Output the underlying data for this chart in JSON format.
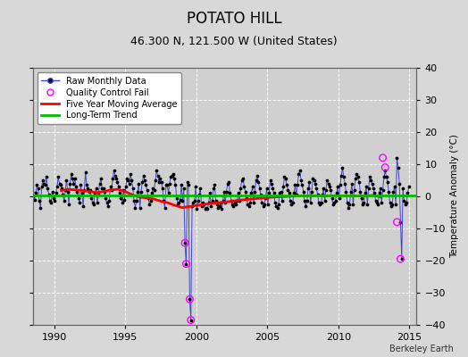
{
  "title": "POTATO HILL",
  "subtitle": "46.300 N, 121.500 W (United States)",
  "ylabel": "Temperature Anomaly (°C)",
  "xlim": [
    1988.5,
    2015.5
  ],
  "ylim": [
    -40,
    40
  ],
  "yticks": [
    -40,
    -30,
    -20,
    -10,
    0,
    10,
    20,
    30,
    40
  ],
  "xticks": [
    1990,
    1995,
    2000,
    2005,
    2010,
    2015
  ],
  "background_color": "#d8d8d8",
  "plot_bg_color": "#d0d0d0",
  "grid_color": "#ffffff",
  "title_fontsize": 12,
  "subtitle_fontsize": 9,
  "watermark": "Berkeley Earth",
  "raw_line_color": "#4444cc",
  "raw_marker_color": "#000000",
  "qc_fail_color": "#ff00ff",
  "moving_avg_color": "#ff0000",
  "trend_color": "#00bb00",
  "raw_monthly_x": [
    1988.042,
    1988.125,
    1988.208,
    1988.292,
    1988.375,
    1988.458,
    1988.542,
    1988.625,
    1988.708,
    1988.792,
    1988.875,
    1988.958,
    1989.042,
    1989.125,
    1989.208,
    1989.292,
    1989.375,
    1989.458,
    1989.542,
    1989.625,
    1989.708,
    1989.792,
    1989.875,
    1989.958,
    1990.042,
    1990.125,
    1990.208,
    1990.292,
    1990.375,
    1990.458,
    1990.542,
    1990.625,
    1990.708,
    1990.792,
    1990.875,
    1990.958,
    1991.042,
    1991.125,
    1991.208,
    1991.292,
    1991.375,
    1991.458,
    1991.542,
    1991.625,
    1991.708,
    1991.792,
    1991.875,
    1991.958,
    1992.042,
    1992.125,
    1992.208,
    1992.292,
    1992.375,
    1992.458,
    1992.542,
    1992.625,
    1992.708,
    1992.792,
    1992.875,
    1992.958,
    1993.042,
    1993.125,
    1993.208,
    1993.292,
    1993.375,
    1993.458,
    1993.542,
    1993.625,
    1993.708,
    1993.792,
    1993.875,
    1993.958,
    1994.042,
    1994.125,
    1994.208,
    1994.292,
    1994.375,
    1994.458,
    1994.542,
    1994.625,
    1994.708,
    1994.792,
    1994.875,
    1994.958,
    1995.042,
    1995.125,
    1995.208,
    1995.292,
    1995.375,
    1995.458,
    1995.542,
    1995.625,
    1995.708,
    1995.792,
    1995.875,
    1995.958,
    1996.042,
    1996.125,
    1996.208,
    1996.292,
    1996.375,
    1996.458,
    1996.542,
    1996.625,
    1996.708,
    1996.792,
    1996.875,
    1996.958,
    1997.042,
    1997.125,
    1997.208,
    1997.292,
    1997.375,
    1997.458,
    1997.542,
    1997.625,
    1997.708,
    1997.792,
    1997.875,
    1997.958,
    1998.042,
    1998.125,
    1998.208,
    1998.292,
    1998.375,
    1998.458,
    1998.542,
    1998.625,
    1998.708,
    1998.792,
    1998.875,
    1998.958,
    1999.042,
    1999.125,
    1999.208,
    1999.292,
    1999.375,
    1999.458,
    1999.542,
    1999.625,
    1999.708,
    1999.792,
    1999.875,
    1999.958,
    2000.042,
    2000.125,
    2000.208,
    2000.292,
    2000.375,
    2000.458,
    2000.542,
    2000.625,
    2000.708,
    2000.792,
    2000.875,
    2000.958,
    2001.042,
    2001.125,
    2001.208,
    2001.292,
    2001.375,
    2001.458,
    2001.542,
    2001.625,
    2001.708,
    2001.792,
    2001.875,
    2001.958,
    2002.042,
    2002.125,
    2002.208,
    2002.292,
    2002.375,
    2002.458,
    2002.542,
    2002.625,
    2002.708,
    2002.792,
    2002.875,
    2002.958,
    2003.042,
    2003.125,
    2003.208,
    2003.292,
    2003.375,
    2003.458,
    2003.542,
    2003.625,
    2003.708,
    2003.792,
    2003.875,
    2003.958,
    2004.042,
    2004.125,
    2004.208,
    2004.292,
    2004.375,
    2004.458,
    2004.542,
    2004.625,
    2004.708,
    2004.792,
    2004.875,
    2004.958,
    2005.042,
    2005.125,
    2005.208,
    2005.292,
    2005.375,
    2005.458,
    2005.542,
    2005.625,
    2005.708,
    2005.792,
    2005.875,
    2005.958,
    2006.042,
    2006.125,
    2006.208,
    2006.292,
    2006.375,
    2006.458,
    2006.542,
    2006.625,
    2006.708,
    2006.792,
    2006.875,
    2006.958,
    2007.042,
    2007.125,
    2007.208,
    2007.292,
    2007.375,
    2007.458,
    2007.542,
    2007.625,
    2007.708,
    2007.792,
    2007.875,
    2007.958,
    2008.042,
    2008.125,
    2008.208,
    2008.292,
    2008.375,
    2008.458,
    2008.542,
    2008.625,
    2008.708,
    2008.792,
    2008.875,
    2008.958,
    2009.042,
    2009.125,
    2009.208,
    2009.292,
    2009.375,
    2009.458,
    2009.542,
    2009.625,
    2009.708,
    2009.792,
    2009.875,
    2009.958,
    2010.042,
    2010.125,
    2010.208,
    2010.292,
    2010.375,
    2010.458,
    2010.542,
    2010.625,
    2010.708,
    2010.792,
    2010.875,
    2010.958,
    2011.042,
    2011.125,
    2011.208,
    2011.292,
    2011.375,
    2011.458,
    2011.542,
    2011.625,
    2011.708,
    2011.792,
    2011.875,
    2011.958,
    2012.042,
    2012.125,
    2012.208,
    2012.292,
    2012.375,
    2012.458,
    2012.542,
    2012.625,
    2012.708,
    2012.792,
    2012.875,
    2012.958,
    2013.042,
    2013.125,
    2013.208,
    2013.292,
    2013.375,
    2013.458,
    2013.542,
    2013.625,
    2013.708,
    2013.792,
    2013.875,
    2013.958,
    2014.042,
    2014.125,
    2014.208,
    2014.292,
    2014.375,
    2014.458,
    2014.542,
    2014.625,
    2014.708,
    2014.792,
    2014.875,
    2014.958
  ],
  "raw_monthly_y": [
    -2.0,
    1.5,
    2.5,
    3.5,
    2.5,
    1.5,
    0.0,
    -1.0,
    1.0,
    3.5,
    2.5,
    -1.5,
    -3.5,
    3.0,
    5.0,
    4.0,
    3.5,
    6.0,
    2.5,
    0.5,
    -1.5,
    -2.0,
    1.5,
    -0.5,
    -1.5,
    1.0,
    3.0,
    6.0,
    4.0,
    3.5,
    2.5,
    0.5,
    -1.5,
    2.0,
    5.0,
    1.5,
    -2.5,
    4.0,
    7.0,
    5.5,
    4.0,
    5.5,
    3.0,
    1.5,
    -0.5,
    -2.0,
    3.5,
    1.0,
    -3.0,
    2.0,
    7.5,
    3.5,
    2.5,
    1.5,
    2.0,
    -0.5,
    -2.0,
    -2.5,
    1.0,
    2.5,
    -2.0,
    1.0,
    4.0,
    5.5,
    2.5,
    2.5,
    1.5,
    -0.5,
    -2.0,
    -3.0,
    -1.5,
    3.0,
    2.0,
    5.5,
    8.0,
    6.5,
    5.5,
    4.5,
    3.0,
    1.0,
    -0.5,
    -2.0,
    2.0,
    -1.0,
    3.0,
    5.5,
    5.0,
    4.0,
    7.0,
    5.0,
    2.5,
    -1.5,
    -3.5,
    -1.5,
    1.5,
    4.0,
    -3.5,
    1.5,
    4.5,
    6.5,
    5.0,
    3.5,
    2.0,
    -0.5,
    -2.5,
    -1.5,
    1.0,
    2.5,
    2.0,
    5.0,
    8.0,
    6.5,
    4.5,
    5.5,
    4.5,
    2.5,
    -1.5,
    -3.5,
    3.5,
    3.5,
    1.0,
    4.0,
    6.0,
    6.5,
    7.0,
    5.5,
    3.5,
    -0.5,
    -2.5,
    -2.0,
    -1.0,
    3.5,
    -1.5,
    2.5,
    -14.5,
    -21.0,
    4.5,
    3.5,
    -32.0,
    -38.5,
    -3.0,
    -2.0,
    -1.5,
    3.0,
    -4.0,
    -1.5,
    0.5,
    2.5,
    -3.0,
    -2.0,
    -2.5,
    -4.0,
    -3.5,
    -4.0,
    -2.0,
    1.0,
    -3.0,
    -1.5,
    2.5,
    3.5,
    -1.5,
    -2.5,
    -3.5,
    -3.0,
    -2.0,
    -4.0,
    -1.5,
    1.5,
    -2.0,
    1.5,
    4.0,
    4.5,
    1.0,
    -1.5,
    -2.5,
    -3.0,
    -2.0,
    -2.5,
    -1.5,
    1.0,
    -1.5,
    2.5,
    5.0,
    5.5,
    3.0,
    1.5,
    -0.5,
    -2.5,
    -3.0,
    -2.0,
    1.0,
    3.0,
    -2.0,
    1.5,
    5.0,
    6.5,
    4.5,
    2.5,
    0.5,
    -2.0,
    -3.0,
    -2.5,
    -0.5,
    2.5,
    -2.5,
    1.0,
    5.0,
    4.0,
    2.5,
    1.0,
    -2.0,
    -3.0,
    -3.5,
    -2.5,
    1.0,
    1.5,
    -1.5,
    3.0,
    6.0,
    5.5,
    3.5,
    2.0,
    1.0,
    -1.5,
    -2.5,
    -2.0,
    1.0,
    3.5,
    0.5,
    3.5,
    7.0,
    8.0,
    5.0,
    3.5,
    1.5,
    -1.5,
    -3.0,
    -1.5,
    2.5,
    4.5,
    -2.0,
    1.5,
    5.5,
    5.0,
    4.0,
    2.5,
    0.5,
    -2.0,
    -2.5,
    -2.0,
    0.5,
    2.5,
    -1.5,
    2.0,
    5.0,
    4.0,
    3.0,
    2.0,
    -0.5,
    -2.5,
    -2.0,
    -1.5,
    1.0,
    3.0,
    -0.5,
    3.5,
    6.5,
    9.0,
    6.0,
    4.0,
    1.5,
    -2.0,
    -3.5,
    -2.5,
    1.5,
    4.0,
    -2.5,
    2.0,
    5.5,
    7.0,
    6.0,
    4.5,
    1.5,
    -0.5,
    -2.5,
    -2.0,
    1.0,
    3.0,
    -2.5,
    2.5,
    6.0,
    5.0,
    4.0,
    2.5,
    1.0,
    -1.5,
    -2.0,
    -2.5,
    1.0,
    2.5,
    -2.0,
    2.0,
    6.0,
    8.0,
    6.0,
    4.5,
    1.5,
    -2.0,
    -3.0,
    -2.5,
    1.5,
    3.0,
    -2.5,
    12.0,
    9.0,
    4.0,
    -8.0,
    -19.5,
    2.5,
    -1.5,
    -2.5,
    -2.0,
    1.0,
    3.0
  ],
  "qc_fail_x": [
    1999.208,
    1999.292,
    1999.542,
    1999.625,
    2013.125,
    2013.292,
    2014.125,
    2014.375
  ],
  "qc_fail_y": [
    -14.5,
    -21.0,
    -32.0,
    -38.5,
    12.0,
    9.0,
    -8.0,
    -19.5
  ],
  "moving_avg_x": [
    1990.5,
    1991.0,
    1991.5,
    1992.0,
    1992.5,
    1993.0,
    1993.5,
    1994.0,
    1994.5,
    1995.0,
    1995.5,
    1996.0,
    1996.5,
    1997.0,
    1997.5,
    1998.0,
    1998.5,
    1999.0,
    1999.5,
    2000.5,
    2001.0,
    2001.5,
    2002.0,
    2002.5,
    2003.0,
    2003.5,
    2004.0,
    2004.5,
    2005.0,
    2005.5,
    2006.0,
    2006.5,
    2007.0,
    2007.5,
    2008.0,
    2008.5,
    2009.0,
    2009.5,
    2010.0,
    2010.5,
    2011.0,
    2011.5,
    2012.0,
    2012.5,
    2013.0
  ],
  "moving_avg_y": [
    1.8,
    2.2,
    2.0,
    1.8,
    1.5,
    1.2,
    1.5,
    2.0,
    2.2,
    1.5,
    0.5,
    -0.2,
    -0.5,
    -0.8,
    -1.5,
    -2.0,
    -2.8,
    -3.5,
    -3.2,
    -2.5,
    -2.2,
    -2.0,
    -1.8,
    -1.5,
    -1.2,
    -1.0,
    -0.8,
    -0.6,
    -0.4,
    -0.2,
    -0.1,
    0.0,
    0.1,
    0.15,
    0.2,
    0.2,
    0.2,
    0.2,
    0.2,
    0.15,
    0.1,
    0.15,
    0.2,
    0.3,
    -0.2
  ],
  "trend_x": [
    1988.5,
    2015.5
  ],
  "trend_y": [
    0.3,
    0.3
  ]
}
